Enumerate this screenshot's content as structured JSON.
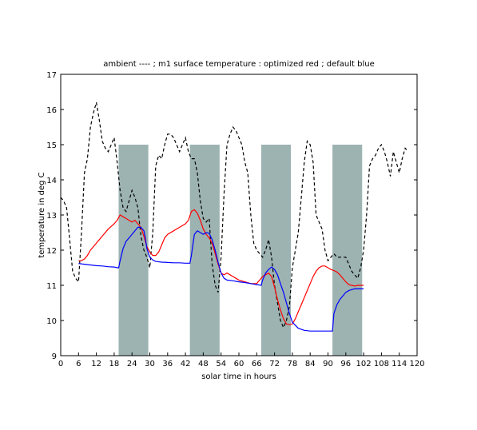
{
  "chart_data": {
    "type": "line",
    "title": "ambient ---- ; m1 surface temperature : optimized red ; default blue",
    "xlabel": "solar time in hours",
    "ylabel": "temperature in deg C",
    "xlim": [
      0,
      120
    ],
    "ylim": [
      9,
      17
    ],
    "x_ticks": [
      "0",
      "6",
      "12",
      "18",
      "24",
      "30",
      "36",
      "42",
      "48",
      "54",
      "60",
      "66",
      "72",
      "78",
      "84",
      "90",
      "96",
      "102",
      "108",
      "114",
      "120"
    ],
    "y_ticks": [
      "9",
      "10",
      "11",
      "12",
      "13",
      "14",
      "15",
      "16",
      "17"
    ],
    "grid": false,
    "shaded_periods": [
      {
        "x_start": 19.5,
        "x_end": 29.5,
        "y_top": 15
      },
      {
        "x_start": 43.5,
        "x_end": 53.5,
        "y_top": 15
      },
      {
        "x_start": 67.5,
        "x_end": 77.5,
        "y_top": 15
      },
      {
        "x_start": 91.5,
        "x_end": 101.5,
        "y_top": 15
      }
    ],
    "colors": {
      "shade": "#9cb3b1",
      "ambient": "#000000",
      "optimized": "#ff0000",
      "default": "#0000ff"
    },
    "series": [
      {
        "key": "ambient",
        "style": "dashed",
        "x": [
          0,
          1,
          2,
          3,
          4,
          5,
          6,
          7,
          8,
          9,
          10,
          11,
          12,
          13,
          14,
          15,
          16,
          17,
          18,
          19,
          20,
          21,
          22,
          23,
          24,
          25,
          26,
          27,
          28,
          29,
          30,
          31,
          32,
          33,
          34,
          35,
          36,
          37,
          38,
          39,
          40,
          41,
          42,
          43,
          44,
          45,
          46,
          47,
          48,
          49,
          50,
          51,
          52,
          53,
          54,
          55,
          56,
          57,
          58,
          59,
          60,
          61,
          62,
          63,
          64,
          65,
          66,
          67,
          68,
          69,
          70,
          71,
          72,
          73,
          74,
          75,
          76,
          77,
          78,
          79,
          80,
          81,
          82,
          83,
          84,
          85,
          86,
          87,
          88,
          89,
          90,
          91,
          92,
          93,
          94,
          95,
          96,
          97,
          98,
          99,
          100,
          101,
          102,
          103,
          104,
          105,
          106,
          107,
          108,
          109,
          110,
          111,
          112,
          113,
          114,
          115,
          116,
          117
        ],
        "y": [
          13.5,
          13.4,
          13.2,
          12.3,
          11.4,
          11.2,
          11.1,
          12.5,
          14.2,
          14.6,
          15.5,
          15.9,
          16.2,
          15.7,
          15.1,
          14.9,
          14.8,
          15.0,
          15.2,
          14.5,
          13.7,
          13.2,
          13.1,
          13.4,
          13.7,
          13.5,
          13.2,
          12.4,
          12.0,
          11.8,
          11.5,
          12.5,
          14.4,
          14.7,
          14.6,
          15.0,
          15.3,
          15.3,
          15.2,
          15.0,
          14.8,
          15.0,
          15.2,
          14.8,
          14.6,
          14.6,
          14.2,
          13.4,
          12.9,
          12.8,
          12.9,
          11.6,
          11.0,
          10.8,
          11.8,
          13.6,
          15.0,
          15.3,
          15.5,
          15.4,
          15.2,
          15.0,
          14.5,
          14.2,
          13.0,
          12.2,
          12.0,
          11.9,
          11.8,
          12.0,
          12.3,
          11.8,
          11.0,
          10.5,
          10.0,
          9.8,
          10.0,
          10.4,
          11.5,
          12.0,
          12.5,
          13.5,
          14.5,
          15.1,
          15.0,
          14.5,
          13.0,
          12.8,
          12.6,
          12.0,
          11.7,
          11.8,
          11.9,
          11.8,
          11.8,
          11.8,
          11.8,
          11.6,
          11.4,
          11.3,
          11.2,
          11.5,
          12.0,
          13.0,
          14.4,
          14.6,
          14.7,
          14.9,
          15.0,
          14.8,
          14.5,
          14.1,
          14.8,
          14.5,
          14.2,
          14.6,
          14.9,
          14.8
        ]
      },
      {
        "key": "optimized",
        "style": "solid",
        "x": [
          6,
          7,
          8,
          9,
          10,
          12,
          14,
          16,
          18,
          19,
          20,
          21,
          22,
          23,
          24,
          25,
          26,
          27,
          28,
          29,
          30,
          31,
          32,
          33,
          34,
          35,
          36,
          38,
          40,
          42,
          43,
          44,
          45,
          46,
          47,
          48,
          49,
          50,
          51,
          52,
          53,
          54,
          55,
          56,
          57,
          58,
          59,
          60,
          62,
          64,
          66,
          67,
          68,
          69,
          70,
          71,
          72,
          73,
          74,
          75,
          76,
          77,
          78,
          79,
          80,
          81,
          82,
          83,
          84,
          85,
          86,
          87,
          88,
          89,
          90,
          91,
          92,
          93,
          94,
          95,
          96,
          97,
          98,
          99,
          100,
          101,
          102
        ],
        "y": [
          11.7,
          11.7,
          11.75,
          11.85,
          12.0,
          12.2,
          12.4,
          12.6,
          12.75,
          12.85,
          13.0,
          12.95,
          12.9,
          12.85,
          12.8,
          12.85,
          12.75,
          12.65,
          12.4,
          12.1,
          11.95,
          11.85,
          11.85,
          11.95,
          12.15,
          12.35,
          12.45,
          12.55,
          12.65,
          12.75,
          12.85,
          13.1,
          13.15,
          13.05,
          12.85,
          12.6,
          12.45,
          12.35,
          12.2,
          11.9,
          11.6,
          11.35,
          11.3,
          11.35,
          11.3,
          11.25,
          11.2,
          11.15,
          11.1,
          11.05,
          11.05,
          11.15,
          11.25,
          11.3,
          11.35,
          11.25,
          10.95,
          10.6,
          10.3,
          10.05,
          9.9,
          9.88,
          9.9,
          10.05,
          10.25,
          10.45,
          10.65,
          10.85,
          11.05,
          11.25,
          11.4,
          11.5,
          11.55,
          11.55,
          11.5,
          11.45,
          11.42,
          11.38,
          11.3,
          11.2,
          11.1,
          11.02,
          11.0,
          10.98,
          11.0,
          11.0,
          11.0
        ]
      },
      {
        "key": "default",
        "style": "solid",
        "x": [
          6,
          8,
          10,
          12,
          14,
          16,
          18,
          19,
          19.5,
          20,
          21,
          22,
          23,
          24,
          25,
          26,
          27,
          28,
          28.5,
          29,
          30,
          31,
          32,
          34,
          36,
          38,
          40,
          42,
          43,
          43.5,
          44,
          45,
          46,
          47,
          48,
          49,
          50,
          51,
          52,
          53,
          54,
          55,
          56,
          58,
          60,
          62,
          64,
          66,
          67,
          67.5,
          68,
          69,
          70,
          71,
          72,
          73,
          74,
          75,
          76,
          77,
          78,
          80,
          82,
          84,
          86,
          88,
          90,
          91,
          91.5,
          92,
          93,
          94,
          95,
          96,
          97,
          98,
          99,
          100,
          101,
          102
        ],
        "y": [
          11.62,
          11.6,
          11.58,
          11.56,
          11.55,
          11.53,
          11.52,
          11.5,
          11.5,
          11.7,
          12.05,
          12.25,
          12.35,
          12.45,
          12.55,
          12.65,
          12.65,
          12.55,
          12.35,
          12.05,
          11.8,
          11.72,
          11.68,
          11.66,
          11.65,
          11.64,
          11.64,
          11.63,
          11.63,
          11.63,
          11.85,
          12.45,
          12.55,
          12.5,
          12.45,
          12.5,
          12.48,
          12.3,
          12.0,
          11.65,
          11.35,
          11.2,
          11.15,
          11.13,
          11.1,
          11.08,
          11.05,
          11.02,
          11.01,
          11.0,
          11.15,
          11.35,
          11.45,
          11.52,
          11.45,
          11.3,
          11.05,
          10.8,
          10.5,
          10.2,
          9.95,
          9.78,
          9.72,
          9.7,
          9.7,
          9.7,
          9.7,
          9.7,
          9.7,
          10.2,
          10.45,
          10.6,
          10.7,
          10.8,
          10.85,
          10.88,
          10.9,
          10.9,
          10.9,
          10.9
        ]
      }
    ]
  }
}
